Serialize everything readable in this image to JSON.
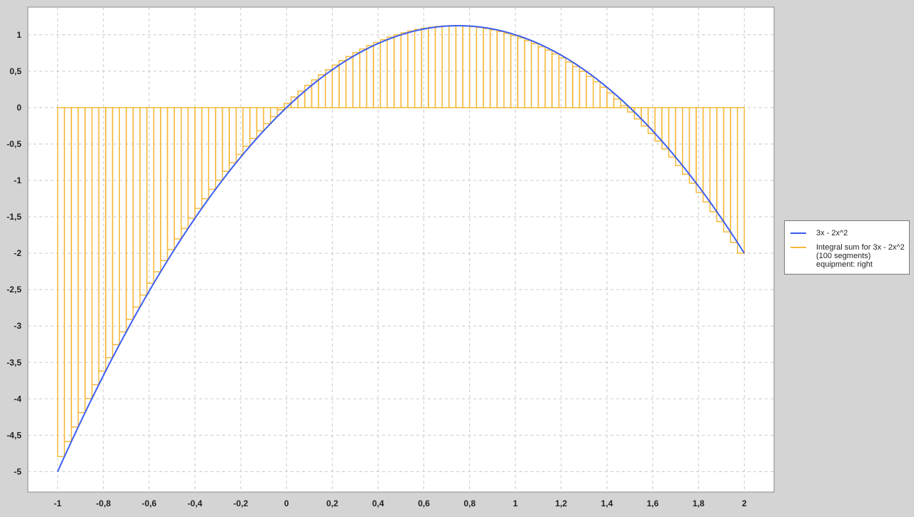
{
  "chart_data": {
    "type": "line",
    "title": "",
    "xlabel": "",
    "ylabel": "",
    "xlim": [
      -1.13,
      2.13
    ],
    "ylim": [
      -5.28,
      1.38
    ],
    "x_ticks": [
      -1,
      -0.8,
      -0.6,
      -0.4,
      -0.2,
      0,
      0.2,
      0.4,
      0.6,
      0.8,
      1,
      1.2,
      1.4,
      1.6,
      1.8,
      2
    ],
    "x_tick_labels": [
      "-1",
      "-0,8",
      "-0,6",
      "-0,4",
      "-0,2",
      "0",
      "0,2",
      "0,4",
      "0,6",
      "0,8",
      "1",
      "1,2",
      "1,4",
      "1,6",
      "1,8",
      "2"
    ],
    "y_ticks": [
      1,
      0.5,
      0,
      -0.5,
      -1,
      -1.5,
      -2,
      -2.5,
      -3,
      -3.5,
      -4,
      -4.5,
      -5
    ],
    "y_tick_labels": [
      "1",
      "0,5",
      "0",
      "-0,5",
      "-1",
      "-1,5",
      "-2",
      "-2,5",
      "-3",
      "-3,5",
      "-4",
      "-4,5",
      "-5"
    ],
    "grid": true,
    "legend_position": "right",
    "series": [
      {
        "name": "3x - 2x^2",
        "kind": "line",
        "color": "#3c5ef2",
        "function": {
          "a": -2,
          "b": 3,
          "c": 0
        },
        "domain": [
          -1,
          2
        ]
      },
      {
        "name": "Integral sum for 3x - 2x^2\n(100 segments)\n equipment: right",
        "kind": "step-rectangles",
        "color": "#f6b93b",
        "segments": 100,
        "sample": "right",
        "domain": [
          -1,
          2
        ]
      }
    ]
  }
}
